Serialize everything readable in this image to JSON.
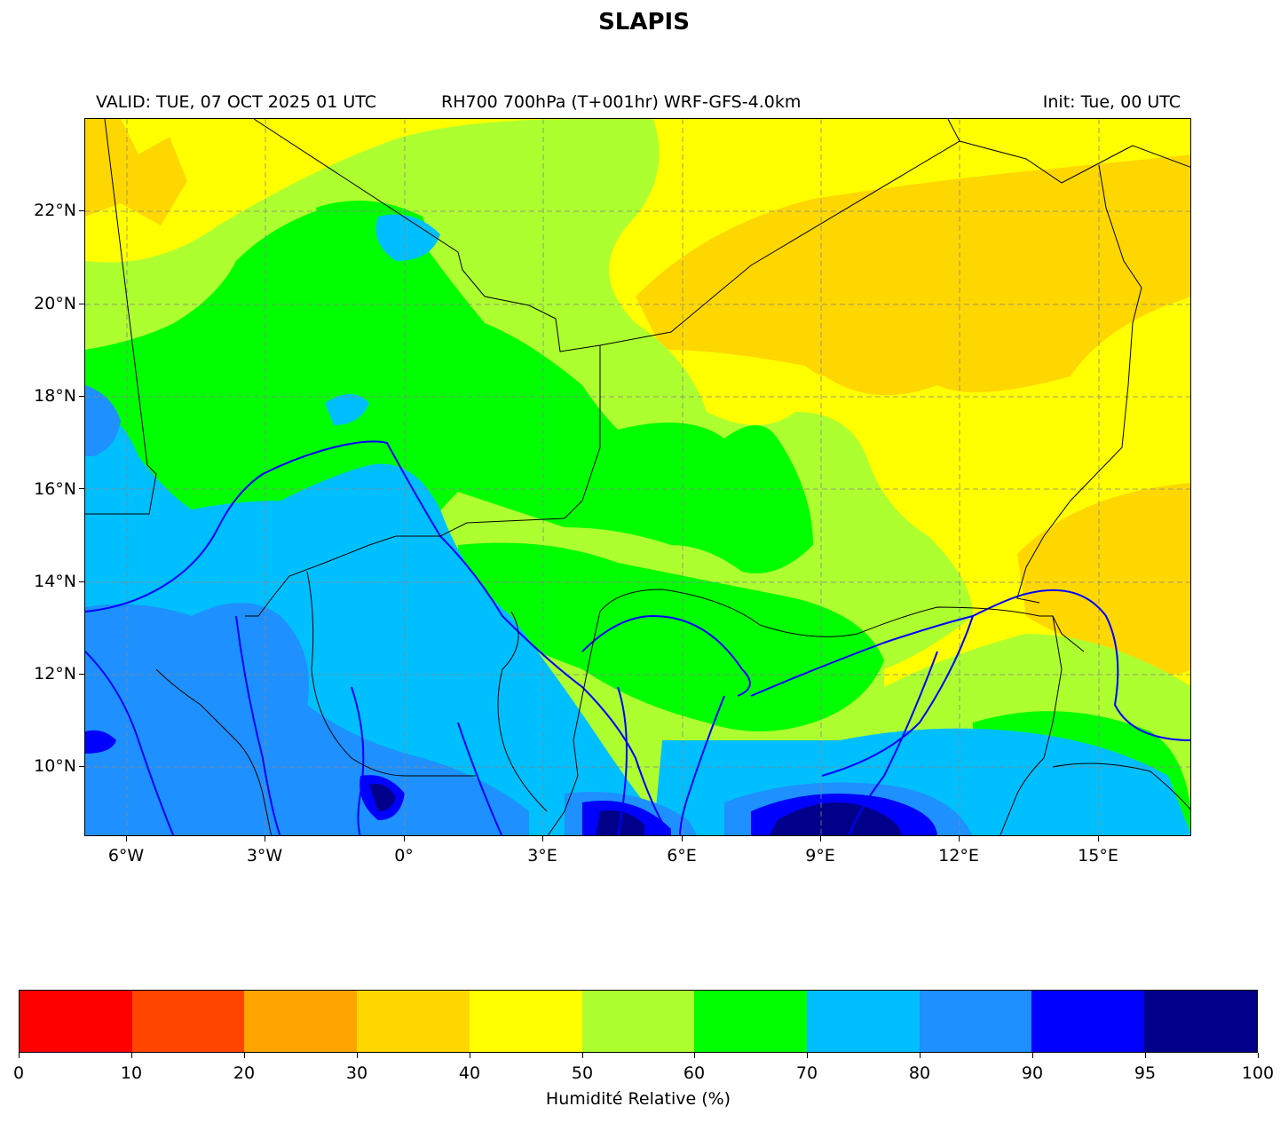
{
  "title": "SLAPIS",
  "header": {
    "valid": "VALID: TUE, 07 OCT 2025 01 UTC",
    "product": "RH700 700hPa (T+001hr) WRF-GFS-4.0km",
    "init": "Init: Tue, 00 UTC"
  },
  "map": {
    "lon_range": [
      -6.9,
      17.0
    ],
    "lat_range": [
      8.5,
      24.0
    ],
    "lat_labels": [
      "22°N",
      "20°N",
      "18°N",
      "16°N",
      "14°N",
      "12°N",
      "10°N"
    ],
    "lon_labels": [
      "6°W",
      "3°W",
      "0°",
      "3°E",
      "6°E",
      "9°E",
      "12°E",
      "15°E"
    ],
    "gridlines": true
  },
  "colorbar": {
    "label": "Humidité Relative (%)",
    "bounds": [
      0,
      10,
      20,
      30,
      40,
      50,
      60,
      70,
      80,
      90,
      95,
      100
    ],
    "tick_labels": [
      "0",
      "10",
      "20",
      "30",
      "40",
      "50",
      "60",
      "70",
      "80",
      "90",
      "95",
      "100"
    ],
    "colors": [
      "#ff0000",
      "#ff4500",
      "#ffa500",
      "#ffd700",
      "#ffff00",
      "#adff2f",
      "#00ff00",
      "#00bfff",
      "#1e90ff",
      "#0000ff",
      "#00008b"
    ]
  }
}
